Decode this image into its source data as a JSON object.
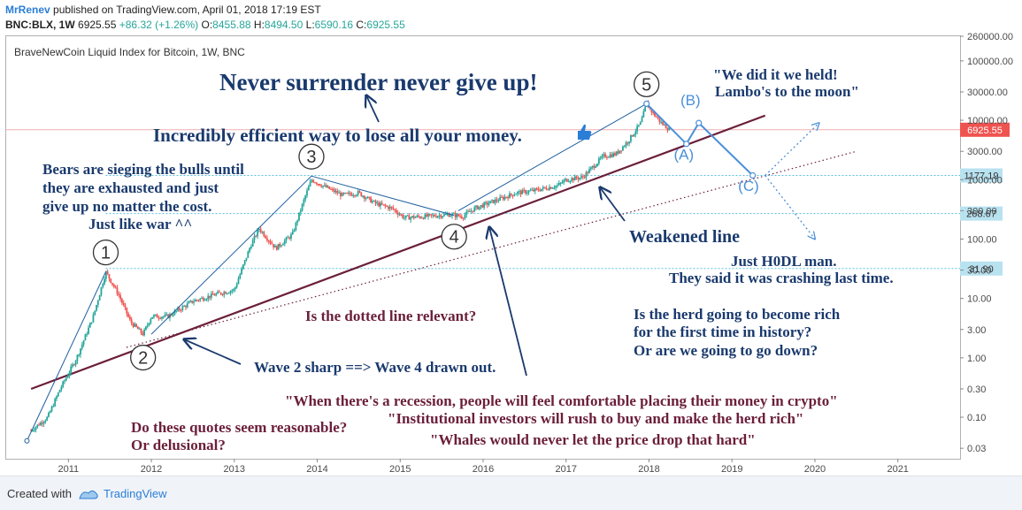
{
  "header": {
    "author": "MrRenev",
    "published": "published on TradingView.com, April 01, 2018 17:19 EST",
    "symbol": "BNC:BLX, 1W",
    "last": "6925.55",
    "change": "+86.32 (+1.26%)",
    "o_label": "O:",
    "o": "8455.88",
    "h_label": "H:",
    "h": "8494.50",
    "l_label": "L:",
    "l": "6590.16",
    "c_label": "C:",
    "c": "6925.55"
  },
  "footer": {
    "created_with": "Created with",
    "brand": "TradingView"
  },
  "colors": {
    "up": "#26a69a",
    "down": "#ef5350",
    "trend": "#6b1f3a",
    "wave": "#1f5fa0",
    "projection": "#4a90d9",
    "level": "#5bc0de",
    "text_blue": "#1a3a6e",
    "text_maroon": "#6b1f3a"
  },
  "chart_data": {
    "type": "candlestick",
    "title": "BraveNewCoin Liquid Index for Bitcoin, 1W, BNC",
    "y_scale": "log",
    "ylim": [
      0.02,
      260000
    ],
    "xlim": [
      2010.25,
      2021.75
    ],
    "x_ticks": [
      "2011",
      "2012",
      "2013",
      "2014",
      "2015",
      "2016",
      "2017",
      "2018",
      "2019",
      "2020",
      "2021"
    ],
    "y_ticks": [
      "260000.00",
      "100000.00",
      "30000.00",
      "10000.00",
      "3000.00",
      "1000.00",
      "300.00",
      "100.00",
      "30.00",
      "10.00",
      "3.00",
      "1.00",
      "0.30",
      "0.10",
      "0.03"
    ],
    "price_labels": [
      {
        "value": 6925.55,
        "text": "6925.55",
        "kind": "last"
      },
      {
        "value": 1177.19,
        "text": "1177.19",
        "kind": "level"
      },
      {
        "value": 268.67,
        "text": "268.67",
        "kind": "level"
      },
      {
        "value": 31.9,
        "text": "31.90",
        "kind": "level"
      }
    ],
    "price_path": [
      [
        2010.55,
        0.06
      ],
      [
        2010.75,
        0.1
      ],
      [
        2010.9,
        0.3
      ],
      [
        2011.1,
        1.0
      ],
      [
        2011.3,
        5
      ],
      [
        2011.45,
        28
      ],
      [
        2011.6,
        12
      ],
      [
        2011.75,
        4
      ],
      [
        2011.9,
        2.5
      ],
      [
        2012.0,
        5
      ],
      [
        2012.2,
        5
      ],
      [
        2012.5,
        9
      ],
      [
        2012.8,
        12
      ],
      [
        2013.0,
        14
      ],
      [
        2013.2,
        80
      ],
      [
        2013.3,
        150
      ],
      [
        2013.5,
        70
      ],
      [
        2013.7,
        120
      ],
      [
        2013.85,
        500
      ],
      [
        2013.93,
        1000
      ],
      [
        2014.1,
        750
      ],
      [
        2014.3,
        550
      ],
      [
        2014.5,
        600
      ],
      [
        2014.7,
        400
      ],
      [
        2014.9,
        330
      ],
      [
        2015.05,
        230
      ],
      [
        2015.3,
        240
      ],
      [
        2015.6,
        260
      ],
      [
        2015.75,
        240
      ],
      [
        2015.9,
        330
      ],
      [
        2016.1,
        420
      ],
      [
        2016.4,
        600
      ],
      [
        2016.6,
        650
      ],
      [
        2016.9,
        800
      ],
      [
        2017.0,
        1000
      ],
      [
        2017.2,
        1100
      ],
      [
        2017.45,
        2500
      ],
      [
        2017.6,
        2700
      ],
      [
        2017.75,
        4500
      ],
      [
        2017.9,
        9000
      ],
      [
        2017.97,
        19000
      ],
      [
        2018.05,
        13000
      ],
      [
        2018.15,
        9000
      ],
      [
        2018.25,
        6900
      ]
    ],
    "wave_labels": [
      {
        "label": "1",
        "x": 2011.45,
        "y": 28,
        "pos": "above"
      },
      {
        "label": "2",
        "x": 2011.9,
        "y": 2.3,
        "pos": "below"
      },
      {
        "label": "3",
        "x": 2013.93,
        "y": 1150,
        "pos": "above"
      },
      {
        "label": "4",
        "x": 2015.65,
        "y": 250,
        "pos": "below"
      },
      {
        "label": "5",
        "x": 2017.97,
        "y": 19000,
        "pos": "above"
      }
    ],
    "projection": {
      "points": [
        [
          2017.97,
          19000
        ],
        [
          2018.45,
          4000
        ],
        [
          2018.6,
          9000
        ],
        [
          2019.25,
          1177.19
        ]
      ],
      "labels": [
        {
          "label": "(A)",
          "x": 2018.42,
          "y": 2200
        },
        {
          "label": "(B)",
          "x": 2018.5,
          "y": 18000
        },
        {
          "label": "(C)",
          "x": 2019.2,
          "y": 650
        }
      ],
      "dotted_paths": [
        [
          [
            2019.4,
            1177.19
          ],
          [
            2020.05,
            9000
          ]
        ],
        [
          [
            2019.4,
            1177.19
          ],
          [
            2020.0,
            100
          ]
        ]
      ]
    },
    "trend_lines": [
      {
        "style": "solid",
        "from": [
          2010.55,
          0.3
        ],
        "to": [
          2019.4,
          12000
        ]
      },
      {
        "style": "dotted",
        "from": [
          2011.7,
          1.5
        ],
        "to": [
          2020.5,
          3000
        ]
      }
    ],
    "wave_lines": [
      [
        [
          2010.5,
          0.04
        ],
        [
          2011.45,
          28
        ]
      ],
      [
        [
          2012.0,
          2.5
        ],
        [
          2013.93,
          1150
        ]
      ],
      [
        [
          2013.93,
          1150
        ],
        [
          2015.65,
          250
        ]
      ],
      [
        [
          2015.7,
          300
        ],
        [
          2017.97,
          19000
        ]
      ]
    ],
    "annotations": [
      {
        "id": "never-surrender",
        "text": "Never surrender never give up!",
        "color": "blue",
        "size": 27
      },
      {
        "id": "efficient-way",
        "text": "Incredibly efficient way to lose all your money.",
        "color": "blue",
        "size": 21
      },
      {
        "id": "we-held-1",
        "text": "\"We did it we held!",
        "color": "blue",
        "size": 17
      },
      {
        "id": "we-held-2",
        "text": "Lambo's to the moon\"",
        "color": "blue",
        "size": 17
      },
      {
        "id": "bears-1",
        "text": "Bears are sieging the bulls until",
        "color": "blue",
        "size": 17
      },
      {
        "id": "bears-2",
        "text": "they are exhausted and just",
        "color": "blue",
        "size": 17
      },
      {
        "id": "bears-3",
        "text": "give up no matter the cost.",
        "color": "blue",
        "size": 17
      },
      {
        "id": "bears-4",
        "text": "Just like war ^^",
        "color": "blue",
        "size": 17
      },
      {
        "id": "weakened-line",
        "text": "Weakened line",
        "color": "blue",
        "size": 20
      },
      {
        "id": "hodl-1",
        "text": "Just H0DL man.",
        "color": "blue",
        "size": 17
      },
      {
        "id": "hodl-2",
        "text": "They said it was crashing last time.",
        "color": "blue",
        "size": 17
      },
      {
        "id": "dotted-relevant",
        "text": "Is the dotted line relevant?",
        "color": "maroon",
        "size": 17
      },
      {
        "id": "herd-1",
        "text": "Is the herd going to become rich",
        "color": "blue",
        "size": 17
      },
      {
        "id": "herd-2",
        "text": "for the first time in history?",
        "color": "blue",
        "size": 17
      },
      {
        "id": "herd-3",
        "text": "Or are we going to go down?",
        "color": "blue",
        "size": 17
      },
      {
        "id": "wave2-wave4",
        "text": "Wave 2 sharp ==> Wave 4 drawn out.",
        "color": "blue",
        "size": 17
      },
      {
        "id": "recession",
        "text": "\"When there's a recession, people will feel comfortable placing their money in crypto\"",
        "color": "maroon",
        "size": 17
      },
      {
        "id": "institutional",
        "text": "\"Institutional investors will rush to buy and make the herd rich\"",
        "color": "maroon",
        "size": 17
      },
      {
        "id": "whales",
        "text": "\"Whales would never let the price drop that hard\"",
        "color": "maroon",
        "size": 17
      },
      {
        "id": "quotes-1",
        "text": "Do these quotes seem reasonable?",
        "color": "maroon",
        "size": 17
      },
      {
        "id": "quotes-2",
        "text": "Or delusional?",
        "color": "maroon",
        "size": 17
      }
    ]
  }
}
